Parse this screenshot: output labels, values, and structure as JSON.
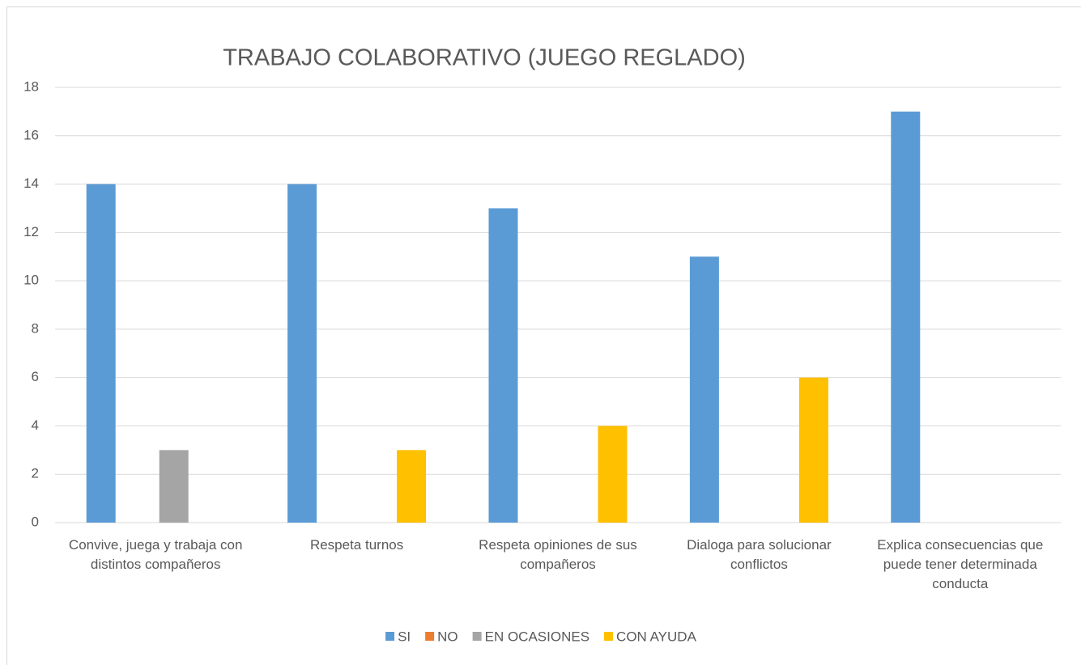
{
  "chart_data": {
    "type": "bar",
    "title": "TRABAJO COLABORATIVO (JUEGO REGLADO)",
    "categories": [
      "Convive, juega y trabaja con distintos compañeros",
      "Respeta turnos",
      "Respeta opiniones de sus compañeros",
      "Dialoga para solucionar conflictos",
      "Explica consecuencias que puede tener determinada conducta"
    ],
    "series": [
      {
        "name": "SI",
        "color": "#5b9bd5",
        "values": [
          14,
          14,
          13,
          11,
          17
        ]
      },
      {
        "name": "NO",
        "color": "#ed7d31",
        "values": [
          0,
          0,
          0,
          0,
          0
        ]
      },
      {
        "name": "EN OCASIONES",
        "color": "#a5a5a5",
        "values": [
          3,
          0,
          0,
          0,
          0
        ]
      },
      {
        "name": "CON AYUDA",
        "color": "#ffc000",
        "values": [
          0,
          3,
          4,
          6,
          0
        ]
      }
    ],
    "ylim": [
      0,
      18
    ],
    "yticks": [
      0,
      2,
      4,
      6,
      8,
      10,
      12,
      14,
      16,
      18
    ],
    "grid": true,
    "legend": "bottom"
  }
}
